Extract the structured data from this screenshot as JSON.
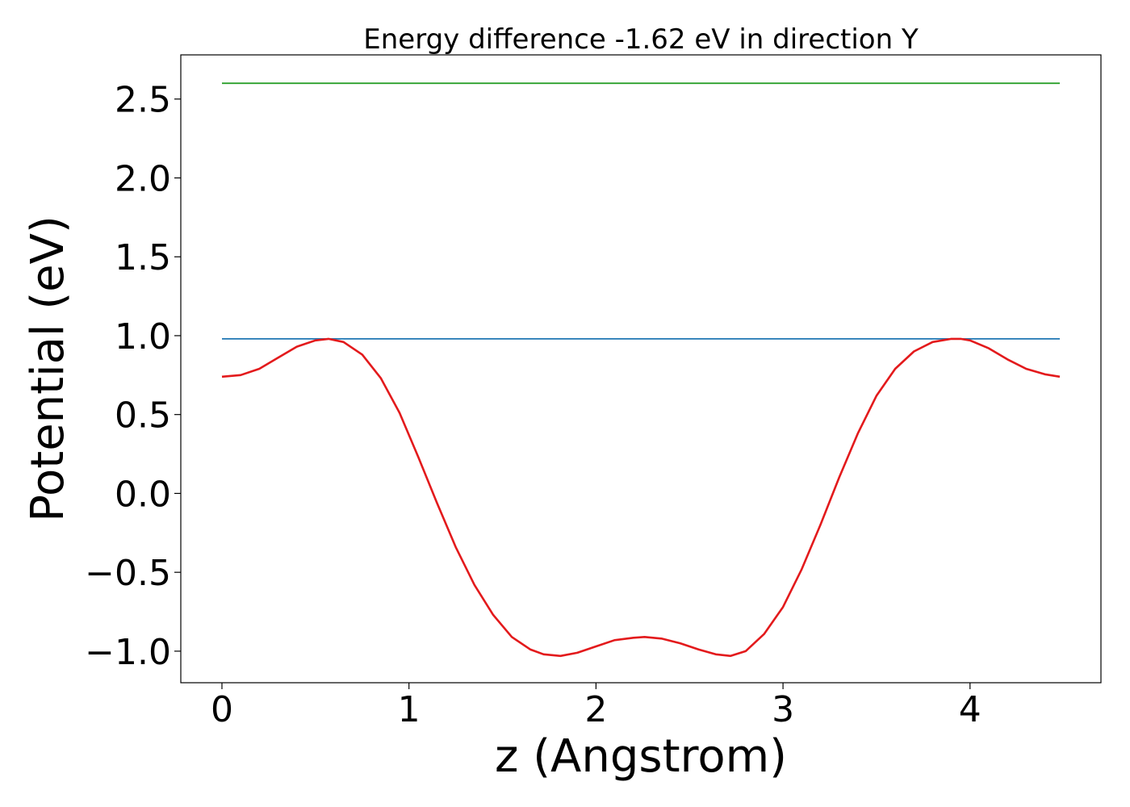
{
  "chart_data": {
    "type": "line",
    "title": "Energy difference -1.62 eV in direction Y",
    "xlabel": "z (Angstrom)",
    "ylabel": "Potential (eV)",
    "xlim": [
      -0.22,
      4.7
    ],
    "ylim": [
      -1.2,
      2.78
    ],
    "x_ticks": [
      0,
      1,
      2,
      3,
      4
    ],
    "x_tick_labels": [
      "0",
      "1",
      "2",
      "3",
      "4"
    ],
    "y_ticks": [
      -1.0,
      -0.5,
      0.0,
      0.5,
      1.0,
      1.5,
      2.0,
      2.5
    ],
    "y_tick_labels": [
      "−1.0",
      "−0.5",
      "0.0",
      "0.5",
      "1.0",
      "1.5",
      "2.0",
      "2.5"
    ],
    "grid": false,
    "legend": "none",
    "series": [
      {
        "color": "#2ca02c",
        "x": [
          0,
          4.48
        ],
        "y": [
          2.6,
          2.6
        ]
      },
      {
        "color": "#1f77b4",
        "x": [
          0,
          4.48
        ],
        "y": [
          0.98,
          0.98
        ]
      },
      {
        "color": "#e31a1c",
        "x": [
          0.0,
          0.1,
          0.2,
          0.3,
          0.4,
          0.5,
          0.57,
          0.65,
          0.75,
          0.85,
          0.95,
          1.05,
          1.15,
          1.25,
          1.35,
          1.45,
          1.55,
          1.65,
          1.72,
          1.81,
          1.9,
          2.0,
          2.1,
          2.2,
          2.26,
          2.35,
          2.45,
          2.55,
          2.64,
          2.72,
          2.8,
          2.9,
          3.0,
          3.1,
          3.2,
          3.3,
          3.4,
          3.5,
          3.6,
          3.7,
          3.8,
          3.9,
          3.95,
          4.0,
          4.1,
          4.2,
          4.3,
          4.4,
          4.48
        ],
        "y": [
          0.74,
          0.75,
          0.79,
          0.86,
          0.93,
          0.97,
          0.98,
          0.96,
          0.88,
          0.73,
          0.51,
          0.23,
          -0.06,
          -0.34,
          -0.58,
          -0.77,
          -0.91,
          -0.99,
          -1.02,
          -1.03,
          -1.01,
          -0.97,
          -0.93,
          -0.915,
          -0.91,
          -0.92,
          -0.95,
          -0.99,
          -1.02,
          -1.03,
          -1.0,
          -0.89,
          -0.72,
          -0.48,
          -0.2,
          0.1,
          0.38,
          0.62,
          0.79,
          0.9,
          0.96,
          0.98,
          0.98,
          0.97,
          0.92,
          0.85,
          0.79,
          0.755,
          0.74
        ]
      }
    ]
  }
}
